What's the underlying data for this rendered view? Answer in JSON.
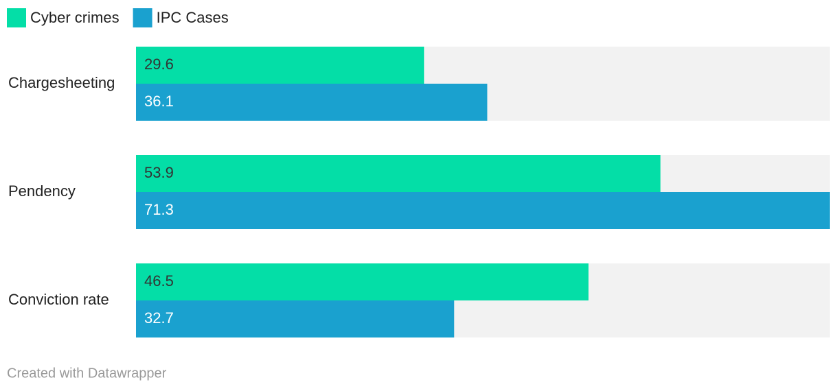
{
  "chart_data": {
    "type": "bar",
    "orientation": "horizontal",
    "categories": [
      "Chargesheeting",
      "Pendency",
      "Conviction rate"
    ],
    "series": [
      {
        "name": "Cyber crimes",
        "color": "#04dea7",
        "values": [
          29.6,
          53.9,
          46.5
        ]
      },
      {
        "name": "IPC Cases",
        "color": "#1aa1cf",
        "values": [
          36.1,
          71.3,
          32.7
        ]
      }
    ],
    "footer": "Created with Datawrapper"
  }
}
